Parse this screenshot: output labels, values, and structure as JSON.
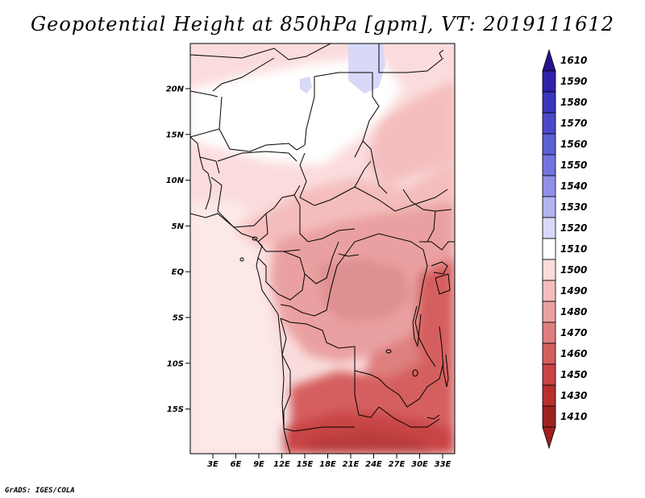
{
  "title": "Geopotential Height at 850hPa [gpm], VT: 2019111612",
  "credit": "GrADS: IGES/COLA",
  "map": {
    "lat_labels": [
      "20N",
      "15N",
      "10N",
      "5N",
      "EQ",
      "5S",
      "10S",
      "15S"
    ],
    "lon_labels": [
      "3E",
      "6E",
      "9E",
      "12E",
      "15E",
      "18E",
      "21E",
      "24E",
      "27E",
      "30E",
      "33E"
    ]
  },
  "colorbar": {
    "levels": [
      "1610",
      "1590",
      "1580",
      "1570",
      "1560",
      "1550",
      "1540",
      "1530",
      "1520",
      "1510",
      "1500",
      "1490",
      "1480",
      "1470",
      "1460",
      "1450",
      "1430",
      "1410"
    ],
    "colors": [
      "#2a0f8f",
      "#2e21a8",
      "#3a36bc",
      "#4a4ac9",
      "#5d5fd5",
      "#7373df",
      "#9090ea",
      "#b3b3f2",
      "#d8d8f8",
      "#ffffff",
      "#fbdcdc",
      "#f4bdbd",
      "#eaa0a0",
      "#df7f7f",
      "#d55f5f",
      "#c94444",
      "#b82f2f",
      "#9e2121"
    ]
  },
  "chart_data": {
    "type": "heatmap",
    "title": "Geopotential Height at 850hPa [gpm], VT: 2019111612",
    "variable": "Geopotential Height at 850hPa",
    "units": "gpm",
    "valid_time": "2019111612",
    "lat_range": [
      -20,
      24
    ],
    "lon_range": [
      0,
      35
    ],
    "contour_levels": [
      1410,
      1430,
      1450,
      1460,
      1470,
      1480,
      1490,
      1500,
      1510,
      1520,
      1530,
      1540,
      1550,
      1560,
      1570,
      1580,
      1590,
      1610
    ],
    "observed_range_approx": [
      1450,
      1525
    ]
  }
}
